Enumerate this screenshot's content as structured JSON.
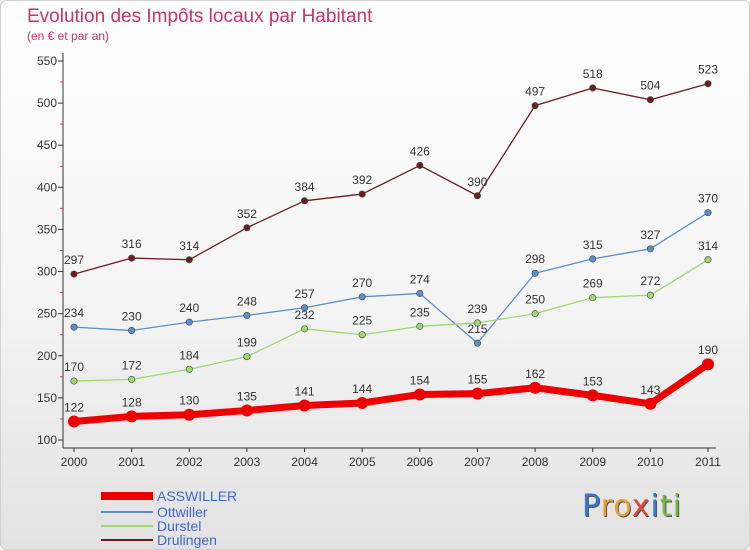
{
  "title": "Evolution des Impôts locaux par Habitant",
  "subtitle": "(en € et par an)",
  "logo": {
    "text": "Proxiti",
    "letters": [
      "P",
      "r",
      "o",
      "x",
      "i",
      "t",
      "i"
    ],
    "colors": [
      "#3a78c9",
      "#e8a03a",
      "#e8a03a",
      "#d94b3a",
      "#3a78c9",
      "#7ab648",
      "#7ab648"
    ]
  },
  "chart_data": {
    "type": "line",
    "x": [
      "2000",
      "2001",
      "2002",
      "2003",
      "2004",
      "2005",
      "2006",
      "2007",
      "2008",
      "2009",
      "2010",
      "2011"
    ],
    "ylim": [
      100,
      550
    ],
    "yticks": [
      100,
      150,
      200,
      250,
      300,
      350,
      400,
      450,
      500,
      550
    ],
    "grid": false,
    "legend_position": "bottom-left",
    "series": [
      {
        "name": "ASSWILLER",
        "color": "#ee0000",
        "values": [
          122,
          128,
          130,
          135,
          141,
          144,
          154,
          155,
          162,
          153,
          143,
          190
        ]
      },
      {
        "name": "Ottwiller",
        "color": "#5b8fc8",
        "values": [
          234,
          230,
          240,
          248,
          257,
          270,
          274,
          215,
          298,
          315,
          327,
          370
        ]
      },
      {
        "name": "Durstel",
        "color": "#9fd86f",
        "values": [
          170,
          172,
          184,
          199,
          232,
          225,
          235,
          239,
          250,
          269,
          272,
          314
        ]
      },
      {
        "name": "Drulingen",
        "color": "#6b1e22",
        "values": [
          297,
          316,
          314,
          352,
          384,
          392,
          426,
          390,
          497,
          518,
          504,
          523
        ]
      }
    ]
  }
}
